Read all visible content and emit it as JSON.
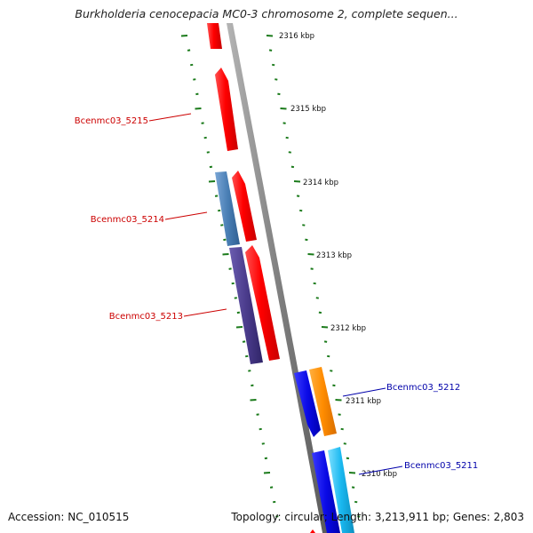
{
  "header": {
    "title": "Burkholderia cenocepacia MC0-3 chromosome 2, complete sequen..."
  },
  "footer": {
    "accession": "Accession: NC_010515",
    "summary": "Topology: circular; Length: 3,213,911 bp; Genes: 2,803"
  },
  "colors": {
    "backbone": "#888888",
    "tick": "#1a7a1a",
    "forward_gene": "#ff0000",
    "reverse_gene_steel": "#4a7fb5",
    "reverse_gene_purple": "#4b3c8c",
    "blue_gene": "#0a0ae6",
    "orange_gene": "#ff8c00",
    "cyan_gene": "#19b8f0",
    "label_red": "#cc0000",
    "label_blue": "#0000aa"
  },
  "map": {
    "kbp_labels": [
      "2316 kbp",
      "2315 kbp",
      "2314 kbp",
      "2313 kbp",
      "2312 kbp",
      "2311 kbp",
      "2310 kbp"
    ],
    "gene_labels": [
      {
        "text": "Bcenmc03_5215",
        "strand": "left"
      },
      {
        "text": "Bcenmc03_5214",
        "strand": "left"
      },
      {
        "text": "Bcenmc03_5213",
        "strand": "left"
      },
      {
        "text": "Bcenmc03_5212",
        "strand": "right"
      },
      {
        "text": "Bcenmc03_5211",
        "strand": "right"
      }
    ]
  }
}
